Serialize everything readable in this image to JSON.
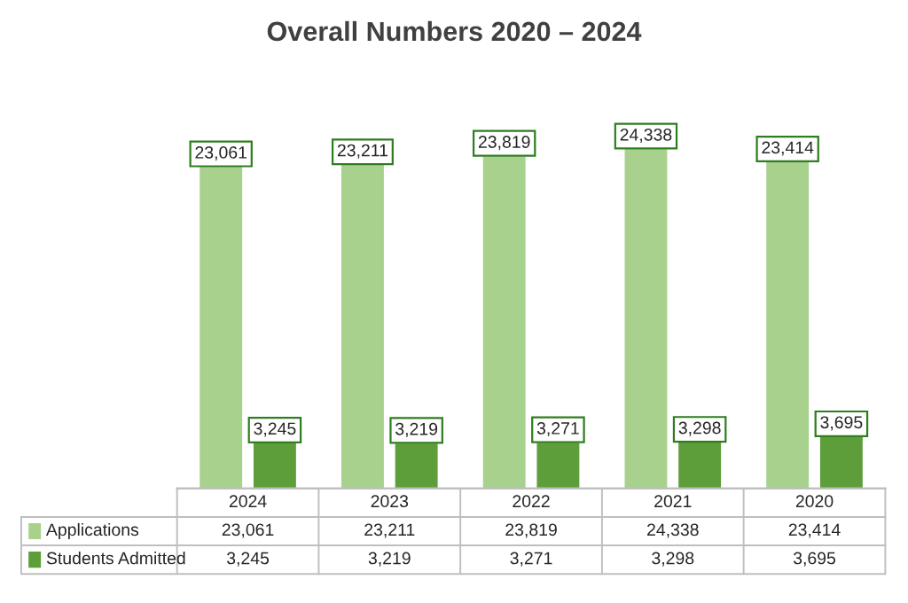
{
  "chart_data": {
    "type": "bar",
    "title": "Overall Numbers 2020 – 2024",
    "categories": [
      "2024",
      "2023",
      "2022",
      "2021",
      "2020"
    ],
    "series": [
      {
        "name": "Applications",
        "color": "#a9d18e",
        "values": [
          23061,
          23211,
          23819,
          24338,
          23414
        ],
        "value_labels": [
          "23,061",
          "23,211",
          "23,819",
          "24,338",
          "23,414"
        ]
      },
      {
        "name": "Students Admitted",
        "color": "#5e9e3a",
        "values": [
          3245,
          3219,
          3271,
          3298,
          3695
        ],
        "value_labels": [
          "3,245",
          "3,219",
          "3,271",
          "3,298",
          "3,695"
        ]
      }
    ],
    "legend": "bottom left"
  }
}
